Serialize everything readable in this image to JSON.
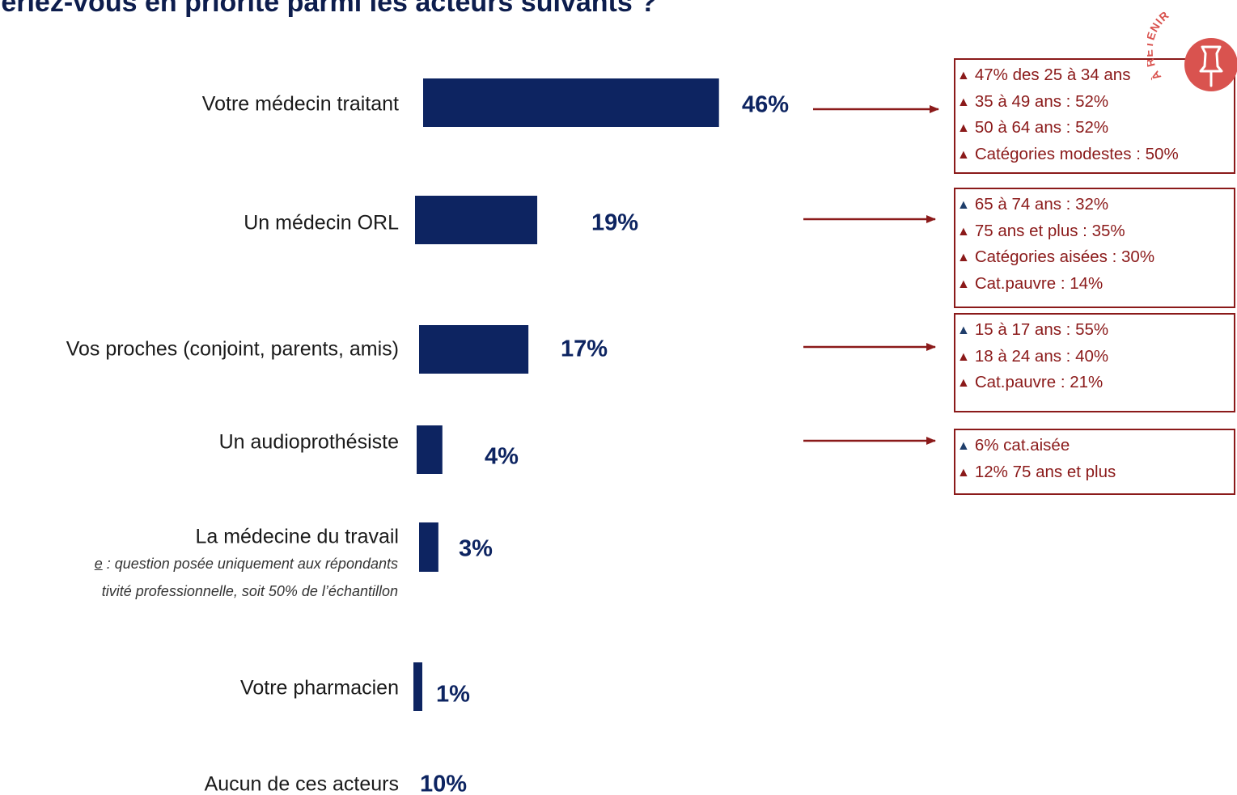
{
  "title": "feriez-vous en priorité parmi les acteurs suivants ?",
  "colors": {
    "bar": "#0d2461",
    "value_label": "#0d2461",
    "callout_text": "#8b1a1a",
    "callout_border": "#8b1a1a",
    "arrow": "#8b1a1a",
    "triangle_up_red": "#8b1a1a",
    "triangle_up_blue": "#1f3e6b",
    "badge": "#d9534f"
  },
  "chart_data": {
    "type": "bar",
    "orientation": "horizontal",
    "categories": [
      "Votre médecin traitant",
      "Un médecin ORL",
      "Vos proches (conjoint, parents, amis)",
      "Un audioprothésiste",
      "La médecine du travail",
      "Votre pharmacien",
      "Aucun de ces acteurs"
    ],
    "values": [
      46,
      19,
      17,
      4,
      3,
      1,
      10
    ],
    "value_labels": [
      "46%",
      "19%",
      "17%",
      "4%",
      "3%",
      "1%",
      "10%"
    ],
    "bar_shown": [
      true,
      true,
      true,
      true,
      true,
      true,
      false
    ],
    "unit": "%"
  },
  "note": {
    "line1_prefix": "e",
    "line1_rest": " : question posée uniquement aux répondants",
    "line2": "tivité professionnelle, soit 50% de l’échantillon"
  },
  "callouts": [
    {
      "items": [
        {
          "text": "47% des 25 à 34 ans",
          "arrow": "up",
          "color": "red"
        },
        {
          "text": "35 à 49 ans : 52%",
          "arrow": "up",
          "color": "red"
        },
        {
          "text": "50 à 64 ans : 52%",
          "arrow": "up",
          "color": "red"
        },
        {
          "text": "Catégories modestes : 50%",
          "arrow": "up",
          "color": "red"
        }
      ]
    },
    {
      "items": [
        {
          "text": "65 à 74 ans : 32%",
          "arrow": "up",
          "color": "blue"
        },
        {
          "text": "75 ans et plus : 35%",
          "arrow": "up",
          "color": "red"
        },
        {
          "text": "Catégories aisées : 30%",
          "arrow": "up",
          "color": "red"
        },
        {
          "text": "Cat.pauvre : 14%",
          "arrow": "up",
          "color": "red"
        }
      ]
    },
    {
      "items": [
        {
          "text": "15 à 17 ans : 55%",
          "arrow": "up",
          "color": "blue"
        },
        {
          "text": "18 à 24 ans : 40%",
          "arrow": "up",
          "color": "red"
        },
        {
          "text": "Cat.pauvre : 21%",
          "arrow": "up",
          "color": "red"
        }
      ]
    },
    {
      "items": [
        {
          "text": "6% cat.aisée",
          "arrow": "up",
          "color": "blue"
        },
        {
          "text": "12% 75 ans et plus",
          "arrow": "up",
          "color": "red"
        }
      ]
    }
  ],
  "badge": {
    "text": "À RETENIR",
    "icon": "pushpin-icon"
  }
}
